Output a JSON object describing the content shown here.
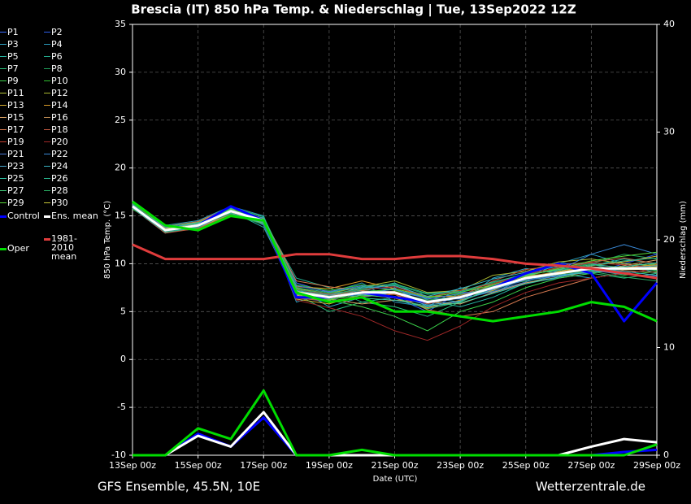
{
  "chart_data": {
    "type": "line",
    "title": "Brescia  (IT)  850 hPa Temp. & Niederschlag | Tue, 13Sep2022 12Z",
    "subtitle_left": "GFS Ensemble, 45.5N, 10E",
    "subtitle_right": "Wetterzentrale.de",
    "xlabel": "Date (UTC)",
    "ylabel": "850 hPa Temp. (°C)",
    "y2label": "Niederschlag (mm)",
    "x": [
      0,
      1,
      2,
      3,
      4,
      5,
      6,
      7,
      8,
      9,
      10,
      11,
      12,
      13,
      14,
      15,
      16
    ],
    "xlim": [
      0,
      16
    ],
    "xticks": [
      {
        "value": 0,
        "label": "13Sep 00z"
      },
      {
        "value": 2,
        "label": "15Sep 00z"
      },
      {
        "value": 4,
        "label": "17Sep 00z"
      },
      {
        "value": 6,
        "label": "19Sep 00z"
      },
      {
        "value": 8,
        "label": "21Sep 00z"
      },
      {
        "value": 10,
        "label": "23Sep 00z"
      },
      {
        "value": 12,
        "label": "25Sep 00z"
      },
      {
        "value": 14,
        "label": "27Sep 00z"
      },
      {
        "value": 16,
        "label": "29Sep 00z"
      }
    ],
    "ylim": [
      -10,
      35
    ],
    "yticks": [
      -10,
      -5,
      0,
      5,
      10,
      15,
      20,
      25,
      30,
      35
    ],
    "y2lim": [
      0,
      40
    ],
    "y2ticks": [
      0,
      10,
      20,
      30,
      40
    ],
    "grid": true,
    "series": [
      {
        "name": "P1",
        "color": "#3a6cff",
        "values": [
          16,
          13.8,
          13.5,
          15.2,
          14.8,
          8,
          7,
          6.5,
          7.5,
          5.5,
          6,
          8,
          9,
          10,
          10,
          9.5,
          10
        ]
      },
      {
        "name": "P2",
        "color": "#2f5fe8",
        "values": [
          16.2,
          13.5,
          14.2,
          15.8,
          14,
          6.5,
          6,
          7.5,
          6.5,
          5,
          7,
          7,
          8,
          8.5,
          9,
          10,
          11
        ]
      },
      {
        "name": "P3",
        "color": "#2fa6c8",
        "values": [
          15.8,
          13.2,
          13.8,
          15,
          14.5,
          7.5,
          5.5,
          6.5,
          7,
          6.5,
          6,
          8.5,
          9.5,
          9,
          8.5,
          9,
          9.5
        ]
      },
      {
        "name": "P4",
        "color": "#2a9bbb",
        "values": [
          16,
          14,
          14.5,
          16,
          15,
          6,
          7,
          8,
          6,
          5.5,
          7.5,
          7,
          8.5,
          10,
          11,
          10,
          9
        ]
      },
      {
        "name": "P5",
        "color": "#26b3a0",
        "values": [
          16.4,
          13.6,
          14,
          15.5,
          13.8,
          7,
          6.8,
          7.2,
          8,
          6.2,
          5.5,
          6.5,
          8,
          8.8,
          9.8,
          10.5,
          10
        ]
      },
      {
        "name": "P6",
        "color": "#22a78a",
        "values": [
          15.9,
          13.4,
          13.6,
          15.3,
          14.6,
          8.5,
          7.5,
          6,
          6.5,
          7,
          7,
          8,
          9,
          9.5,
          10,
          9,
          8.5
        ]
      },
      {
        "name": "P7",
        "color": "#28c07a",
        "values": [
          16.1,
          13.9,
          14.3,
          15.7,
          14.4,
          6.8,
          5,
          6,
          5.5,
          4.5,
          6,
          7.5,
          8.5,
          9,
          9,
          8.5,
          9
        ]
      },
      {
        "name": "P8",
        "color": "#1f9e5a",
        "values": [
          16,
          13.7,
          14.1,
          15.6,
          14.7,
          7.2,
          6.6,
          7.4,
          7.8,
          6.8,
          7,
          8,
          9,
          9.5,
          10,
          11,
          10.5
        ]
      },
      {
        "name": "P9",
        "color": "#3bd14a",
        "values": [
          16.3,
          13.3,
          13.9,
          15.4,
          14.2,
          6.6,
          6.2,
          5.5,
          4.5,
          3,
          5,
          6,
          7.5,
          8.5,
          9,
          9.5,
          10
        ]
      },
      {
        "name": "P10",
        "color": "#30c030",
        "values": [
          15.7,
          13.6,
          14.4,
          15.9,
          14.9,
          7.8,
          7.2,
          7.8,
          7.2,
          6.4,
          6.8,
          7.6,
          8.2,
          9,
          9.4,
          8.8,
          9.2
        ]
      },
      {
        "name": "P11",
        "color": "#b8c83a",
        "values": [
          16,
          13.5,
          14,
          15.5,
          14.5,
          6.9,
          6.4,
          6.9,
          6.9,
          5.9,
          6.4,
          7.4,
          8.4,
          8.9,
          9.4,
          9.4,
          9.4
        ]
      },
      {
        "name": "P12",
        "color": "#a8b830",
        "values": [
          16.2,
          13.8,
          13.7,
          15.1,
          14.3,
          7.4,
          6.9,
          7.6,
          8.2,
          7,
          7.2,
          8.8,
          9.2,
          10.2,
          10.5,
          10,
          9.8
        ]
      },
      {
        "name": "P13",
        "color": "#d8b030",
        "values": [
          15.8,
          13.4,
          14.2,
          15.6,
          14.6,
          6.3,
          5.8,
          6.8,
          6.4,
          5.4,
          6.2,
          7.2,
          8.6,
          9.2,
          9.8,
          10.2,
          10.8
        ]
      },
      {
        "name": "P14",
        "color": "#d89a28",
        "values": [
          16.1,
          13.7,
          14.3,
          15.8,
          14.1,
          7.6,
          7.4,
          8.2,
          7.4,
          6.6,
          6.6,
          7.8,
          8.8,
          9.4,
          9.2,
          9.6,
          9.9
        ]
      },
      {
        "name": "P15",
        "color": "#d8a060",
        "values": [
          15.9,
          13.3,
          13.8,
          15.2,
          14.8,
          6.7,
          6.3,
          5.8,
          6.2,
          6,
          5.8,
          7,
          8,
          8.6,
          9.2,
          9.8,
          10.4
        ]
      },
      {
        "name": "P16",
        "color": "#b88850",
        "values": [
          16,
          13.6,
          14,
          15.4,
          14.4,
          7.1,
          6.7,
          7.1,
          7.1,
          6.1,
          6.7,
          7.7,
          8.7,
          9.1,
          9.7,
          9.3,
          9.1
        ]
      },
      {
        "name": "P17",
        "color": "#d87a50",
        "values": [
          16.2,
          13.9,
          14.4,
          15.9,
          14.7,
          8.2,
          7.6,
          7.2,
          6.8,
          5.2,
          4.5,
          5,
          6.5,
          7.5,
          8.5,
          9,
          9.5
        ]
      },
      {
        "name": "P18",
        "color": "#c05a40",
        "values": [
          15.8,
          13.2,
          13.7,
          15.1,
          14.2,
          6.4,
          6.1,
          6.6,
          6.8,
          5.8,
          6.6,
          8.2,
          9.4,
          9.8,
          10.2,
          10.6,
          10
        ]
      },
      {
        "name": "P19",
        "color": "#c84030",
        "values": [
          16.3,
          13.7,
          14.1,
          15.6,
          14.5,
          7.3,
          6.8,
          7.3,
          7.6,
          6.5,
          7.2,
          7.9,
          8.9,
          9.6,
          10.1,
          9.9,
          9.6
        ]
      },
      {
        "name": "P20",
        "color": "#a02828",
        "values": [
          15.9,
          13.5,
          13.9,
          15.3,
          14.6,
          6.2,
          5.4,
          4.5,
          3,
          2,
          3.5,
          5.5,
          7,
          8,
          8.5,
          9,
          9.5
        ]
      },
      {
        "name": "P21",
        "color": "#4a7ad8",
        "values": [
          16.1,
          13.8,
          14.2,
          15.7,
          14.3,
          7.7,
          7.1,
          7.7,
          7.3,
          6.3,
          6.9,
          7.3,
          8.3,
          8.7,
          9.3,
          8.9,
          8.7
        ]
      },
      {
        "name": "P22",
        "color": "#3a8ad8",
        "values": [
          16,
          13.4,
          13.8,
          15.4,
          14.8,
          6.9,
          6.6,
          7,
          7.3,
          6.4,
          6.3,
          7.1,
          8.1,
          9.3,
          11,
          12,
          11
        ]
      },
      {
        "name": "P23",
        "color": "#48a8d0",
        "values": [
          15.9,
          13.6,
          14.1,
          15.5,
          14.4,
          7,
          6.5,
          6.8,
          6.6,
          5.7,
          6.1,
          7.3,
          8.4,
          8.8,
          9.1,
          9.5,
          9.8
        ]
      },
      {
        "name": "P24",
        "color": "#38b0c0",
        "values": [
          16.2,
          13.5,
          13.9,
          15.6,
          14.6,
          7.2,
          6.7,
          7.5,
          7.7,
          6.6,
          7.4,
          8.4,
          9.1,
          9.7,
          9.6,
          9.2,
          8.8
        ]
      },
      {
        "name": "P25",
        "color": "#30c8a8",
        "values": [
          16,
          13.7,
          14.2,
          15.3,
          14.2,
          6.6,
          6.1,
          6.4,
          6.2,
          5.6,
          5.9,
          6.9,
          7.9,
          8.6,
          9.3,
          9.7,
          10.1
        ]
      },
      {
        "name": "P26",
        "color": "#28b890",
        "values": [
          15.8,
          13.3,
          13.8,
          15.8,
          14.9,
          7.5,
          7,
          7.6,
          7.9,
          6.9,
          7.1,
          8.1,
          8.9,
          9.3,
          9.8,
          10.3,
          10.6
        ]
      },
      {
        "name": "P27",
        "color": "#40c878",
        "values": [
          16.1,
          13.9,
          14.3,
          15.5,
          14.5,
          6.8,
          6.3,
          6.7,
          6.5,
          5.3,
          6,
          7.6,
          8.8,
          9.4,
          9.9,
          9.6,
          9.3
        ]
      },
      {
        "name": "P28",
        "color": "#28a860",
        "values": [
          16.3,
          13.6,
          14,
          15.2,
          14.1,
          7.3,
          6.9,
          7.3,
          7,
          6.2,
          6.6,
          7.7,
          8.5,
          9,
          9.2,
          8.6,
          8.2
        ]
      },
      {
        "name": "P29",
        "color": "#58d838",
        "values": [
          15.9,
          13.4,
          13.9,
          15.7,
          14.7,
          6.5,
          6.2,
          7,
          7.4,
          6.5,
          7,
          7.8,
          8.7,
          9.5,
          10.3,
          10.8,
          11.2
        ]
      },
      {
        "name": "P30",
        "color": "#c8c838",
        "values": [
          16,
          13.7,
          14.1,
          15.4,
          14.4,
          7.1,
          6.6,
          6.9,
          6.9,
          6,
          6.5,
          7.5,
          8.6,
          9.1,
          9.6,
          9.4,
          9.7
        ]
      },
      {
        "name": "Control",
        "color": "#0000ff",
        "linewidth": 3,
        "values": [
          16,
          13.5,
          14,
          16,
          14.5,
          6.5,
          6.5,
          7,
          6.5,
          6,
          6.5,
          7.5,
          9,
          10,
          9,
          4,
          8
        ],
        "precip": [
          0,
          0,
          2,
          0.8,
          3.5,
          0,
          0,
          0,
          0,
          0,
          0,
          0,
          0,
          0,
          0,
          0.3,
          0.5
        ]
      },
      {
        "name": "Ens. mean",
        "color": "#ffffff",
        "linewidth": 3,
        "values": [
          16,
          13.5,
          14,
          15.5,
          14.5,
          7,
          6.5,
          7,
          7,
          6,
          6.5,
          7.5,
          8.5,
          9,
          9.5,
          9.5,
          9.5
        ],
        "precip": [
          0,
          0,
          1.8,
          0.8,
          4,
          0,
          0,
          0,
          0,
          0,
          0,
          0,
          0,
          0,
          0.8,
          1.5,
          1.2
        ]
      },
      {
        "name": "1981-2010 mean",
        "color": "#e03c3c",
        "linewidth": 3,
        "values": [
          12,
          10.5,
          10.5,
          10.5,
          10.5,
          11,
          11,
          10.5,
          10.5,
          10.8,
          10.8,
          10.5,
          10,
          9.8,
          9.5,
          9,
          8.5
        ]
      },
      {
        "name": "Oper",
        "color": "#00dd00",
        "linewidth": 3,
        "values": [
          16.5,
          14,
          13.5,
          15,
          14.5,
          7,
          6,
          6.5,
          5,
          5,
          4.5,
          4,
          4.5,
          5,
          6,
          5.5,
          4
        ],
        "precip": [
          0,
          0,
          2.5,
          1.5,
          6,
          0,
          0,
          0.5,
          0,
          0,
          0,
          0,
          0,
          0,
          0,
          0,
          1
        ]
      }
    ]
  }
}
